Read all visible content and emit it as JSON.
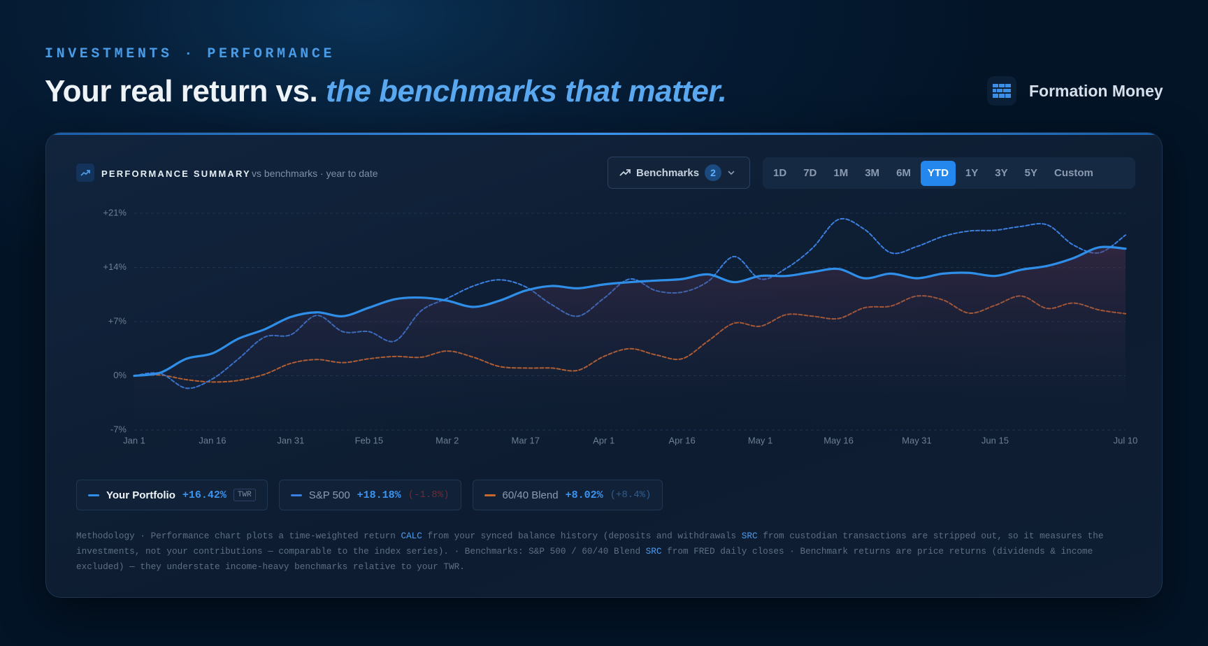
{
  "header": {
    "eyebrow": "INVESTMENTS · PERFORMANCE",
    "title": "Your real return vs.",
    "title_emphasis": "the benchmarks that matter.",
    "brand": "Formation Money"
  },
  "panel": {
    "title": "PERFORMANCE SUMMARY",
    "subtitle": "vs benchmarks · year to date",
    "benchmarks_button": "Benchmarks",
    "benchmarks_count": 2,
    "ranges": [
      "1D",
      "7D",
      "1M",
      "3M",
      "6M",
      "YTD",
      "1Y",
      "3Y",
      "5Y",
      "Custom"
    ],
    "active_range": "YTD"
  },
  "chart_data": {
    "type": "line",
    "grid": true,
    "x": [
      0,
      5,
      10,
      15,
      20,
      25,
      30,
      35,
      40,
      45,
      50,
      55,
      60,
      65,
      70,
      75,
      80,
      85,
      90,
      95,
      100,
      105,
      110,
      115,
      120,
      125,
      130,
      135,
      140,
      145,
      150,
      155,
      160,
      165,
      170,
      175,
      180,
      185,
      190
    ],
    "xlim": [
      0,
      190
    ],
    "xticks": [
      {
        "value": 0,
        "label": "Jan 1"
      },
      {
        "value": 15,
        "label": "Jan 16"
      },
      {
        "value": 30,
        "label": "Jan 31"
      },
      {
        "value": 45,
        "label": "Feb 15"
      },
      {
        "value": 60,
        "label": "Mar 2"
      },
      {
        "value": 75,
        "label": "Mar 17"
      },
      {
        "value": 90,
        "label": "Apr 1"
      },
      {
        "value": 105,
        "label": "Apr 16"
      },
      {
        "value": 120,
        "label": "May 1"
      },
      {
        "value": 135,
        "label": "May 16"
      },
      {
        "value": 150,
        "label": "May 31"
      },
      {
        "value": 165,
        "label": "Jun 15"
      },
      {
        "value": 190,
        "label": "Jul 10"
      }
    ],
    "ylim": [
      -7,
      21
    ],
    "yticks": [
      {
        "value": -7,
        "label": "-7%"
      },
      {
        "value": 0,
        "label": "0%"
      },
      {
        "value": 7,
        "label": "+7%"
      },
      {
        "value": 14,
        "label": "+14%"
      },
      {
        "value": 21,
        "label": "+21%"
      }
    ],
    "series": [
      {
        "name": "Your Portfolio",
        "color": "#2f8fe8",
        "style": "solid",
        "values": [
          0,
          0.4,
          2.2,
          2.9,
          4.8,
          6.0,
          7.6,
          8.2,
          7.7,
          8.8,
          9.9,
          10.1,
          9.7,
          8.9,
          9.7,
          11.0,
          11.6,
          11.3,
          11.8,
          12.1,
          12.3,
          12.5,
          13.1,
          12.1,
          12.9,
          12.9,
          13.4,
          13.8,
          12.6,
          13.2,
          12.6,
          13.2,
          13.3,
          12.9,
          13.7,
          14.2,
          15.2,
          16.6,
          16.42
        ]
      },
      {
        "name": "S&P 500",
        "color": "#3b7fe0",
        "style": "dashed",
        "values": [
          0,
          0.3,
          -1.6,
          -0.4,
          2.2,
          5.0,
          5.3,
          7.8,
          5.7,
          5.7,
          4.5,
          8.4,
          10.0,
          11.6,
          12.4,
          11.5,
          9.2,
          7.7,
          10.0,
          12.5,
          11.0,
          10.8,
          12.2,
          15.4,
          12.5,
          13.9,
          16.5,
          20.2,
          18.9,
          15.9,
          16.7,
          18.0,
          18.7,
          18.8,
          19.3,
          19.5,
          16.9,
          15.9,
          18.18
        ]
      },
      {
        "name": "60/40 Blend",
        "color": "#c8682f",
        "style": "dashed",
        "values": [
          0,
          0.1,
          -0.5,
          -0.8,
          -0.6,
          0.2,
          1.6,
          2.1,
          1.7,
          2.2,
          2.5,
          2.4,
          3.2,
          2.4,
          1.2,
          1.0,
          1.0,
          0.7,
          2.5,
          3.5,
          2.7,
          2.2,
          4.5,
          6.8,
          6.4,
          7.9,
          7.7,
          7.4,
          8.8,
          9.0,
          10.3,
          9.8,
          8.1,
          9.1,
          10.3,
          8.7,
          9.4,
          8.5,
          8.02
        ]
      }
    ]
  },
  "legend": [
    {
      "return": "+16.42%",
      "tag": "TWR"
    },
    {
      "return": "+18.18%",
      "delta": "(-1.8%)"
    },
    {
      "return": "+8.02%",
      "delta": "(+8.4%)"
    }
  ],
  "methodology": [
    {
      "text": "Methodology · Performance chart plots a time-weighted return "
    },
    {
      "tag": "CALC"
    },
    {
      "text": " from your synced balance history (deposits and withdrawals "
    },
    {
      "tag": "SRC"
    },
    {
      "text": " from custodian transactions are stripped out, so it measures the investments, not your contributions — comparable to the index series). · Benchmarks: S&P 500 / 60/40 Blend "
    },
    {
      "tag": "SRC"
    },
    {
      "text": " from FRED daily closes · Benchmark returns are price returns (dividends & income excluded) — they understate income-heavy benchmarks relative to your TWR."
    }
  ]
}
